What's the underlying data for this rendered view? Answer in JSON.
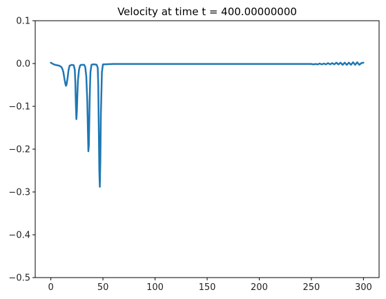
{
  "chart_data": {
    "type": "line",
    "title": "Velocity at time t =   400.00000000",
    "xlabel": "",
    "ylabel": "",
    "xlim": [
      -15,
      315
    ],
    "ylim": [
      -0.5,
      0.1
    ],
    "x_ticks": [
      0,
      50,
      100,
      150,
      200,
      250,
      300
    ],
    "x_tick_labels": [
      "0",
      "50",
      "100",
      "150",
      "200",
      "250",
      "300"
    ],
    "y_ticks": [
      0.1,
      0.0,
      -0.1,
      -0.2,
      -0.3,
      -0.4,
      -0.5
    ],
    "y_tick_labels": [
      "0.1",
      "0.0",
      "−0.1",
      "−0.2",
      "−0.3",
      "−0.4",
      "−0.5"
    ],
    "grid": false,
    "line_color": "#1f77b4",
    "series": [
      {
        "x": [
          0,
          2,
          4,
          6,
          8,
          10,
          11,
          12,
          13,
          14,
          14.5,
          15,
          16,
          17,
          18,
          20,
          22,
          23,
          23.5,
          24,
          24.5,
          25,
          25.5,
          26,
          27,
          28,
          29,
          30,
          32,
          33,
          34,
          35,
          35.5,
          36,
          36.5,
          37,
          37.5,
          38,
          39,
          40,
          42,
          44,
          45,
          45.5,
          46,
          46.5,
          47,
          47.5,
          48,
          49,
          50,
          60,
          100,
          150,
          200,
          240,
          250,
          252,
          254,
          256,
          258,
          260,
          262,
          264,
          266,
          268,
          270,
          272,
          274,
          276,
          278,
          280,
          282,
          284,
          286,
          288,
          290,
          292,
          294,
          296,
          298,
          300
        ],
        "y": [
          0.002,
          -0.001,
          -0.003,
          -0.004,
          -0.005,
          -0.008,
          -0.012,
          -0.02,
          -0.035,
          -0.048,
          -0.052,
          -0.05,
          -0.035,
          -0.015,
          -0.005,
          -0.003,
          -0.004,
          -0.015,
          -0.045,
          -0.095,
          -0.13,
          -0.11,
          -0.07,
          -0.04,
          -0.015,
          -0.005,
          -0.003,
          -0.003,
          -0.003,
          -0.008,
          -0.03,
          -0.09,
          -0.15,
          -0.205,
          -0.19,
          -0.12,
          -0.06,
          -0.02,
          -0.003,
          -0.002,
          -0.002,
          -0.003,
          -0.01,
          -0.05,
          -0.15,
          -0.25,
          -0.288,
          -0.23,
          -0.12,
          -0.02,
          -0.002,
          -0.001,
          -0.001,
          -0.001,
          -0.001,
          -0.001,
          -0.001,
          -0.002,
          -0.001,
          -0.002,
          0.0,
          -0.002,
          0.0,
          -0.002,
          0.001,
          -0.002,
          0.001,
          -0.002,
          0.002,
          -0.002,
          0.002,
          -0.003,
          0.002,
          -0.003,
          0.002,
          -0.003,
          0.003,
          -0.003,
          0.003,
          -0.003,
          0.001,
          0.002
        ]
      }
    ]
  }
}
